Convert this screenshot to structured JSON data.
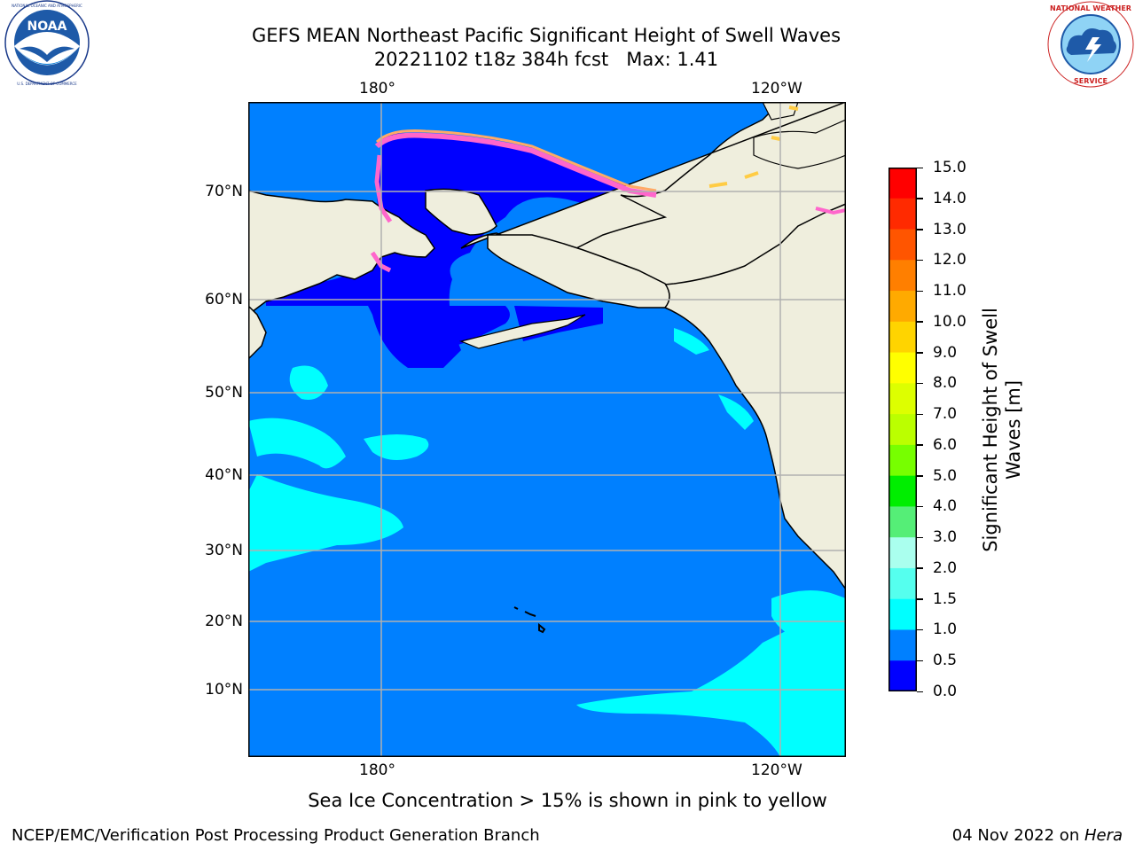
{
  "header": {
    "title_line1": "GEFS MEAN Northeast Pacific Significant Height of Swell Waves",
    "title_line2": "20221102 t18z 384h fcst   Max: 1.41"
  },
  "logos": {
    "left": {
      "name": "noaa-logo",
      "text": "NOAA",
      "ring_text": "NATIONAL OCEANIC AND ATMOSPHERIC ADMINISTRATION · U.S. DEPARTMENT OF COMMERCE"
    },
    "right": {
      "name": "nws-logo",
      "ring_text": "NATIONAL WEATHER SERVICE"
    }
  },
  "map": {
    "lon_labels_top": [
      "180°",
      "120°W"
    ],
    "lon_labels_bottom": [
      "180°",
      "120°W"
    ],
    "lat_labels": [
      "70°N",
      "60°N",
      "50°N",
      "40°N",
      "30°N",
      "20°N",
      "10°N"
    ],
    "colors": {
      "land": "#efeedd",
      "ocean_main": "#0080ff",
      "swell_low": "#0000ff",
      "swell_mid": "#00ffff",
      "ice_pink": "#ff66cc",
      "ice_orange": "#ffaa66",
      "gridline": "#b0b0b0"
    }
  },
  "colorbar": {
    "title": "Significant Height of Swell Waves [m]",
    "title_line1": "Significant Height of Swell",
    "title_line2": "Waves [m]",
    "ticks": [
      "15.0",
      "14.0",
      "13.0",
      "12.0",
      "11.0",
      "10.0",
      "9.0",
      "8.0",
      "7.0",
      "6.0",
      "5.0",
      "4.0",
      "3.0",
      "2.0",
      "1.5",
      "1.0",
      "0.5",
      "0.0"
    ],
    "colors_top_to_bottom": [
      "#ff0000",
      "#ff2a00",
      "#ff5500",
      "#ff7f00",
      "#ffaa00",
      "#ffd400",
      "#ffff00",
      "#ddff00",
      "#bbff00",
      "#77ff00",
      "#00ee00",
      "#55ee77",
      "#aaffee",
      "#55ffee",
      "#00ffff",
      "#0080ff",
      "#0000ff"
    ]
  },
  "footer": {
    "caption": "Sea Ice Concentration > 15% is shown in pink to yellow",
    "left": "NCEP/EMC/Verification Post Processing Product Generation Branch",
    "right_date": "04 Nov 2022 on ",
    "right_host": "Hera"
  }
}
